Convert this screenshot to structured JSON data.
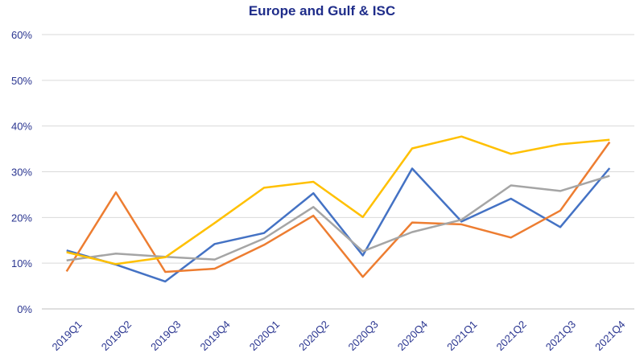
{
  "chart_data": {
    "type": "line",
    "title": "Europe and Gulf & ISC",
    "categories": [
      "2019Q1",
      "2019Q2",
      "2019Q3",
      "2019Q4",
      "2020Q1",
      "2020Q2",
      "2020Q3",
      "2020Q4",
      "2021Q1",
      "2021Q2",
      "2021Q3",
      "2021Q4"
    ],
    "y_ticks": [
      "0%",
      "10%",
      "20%",
      "30%",
      "40%",
      "50%",
      "60%"
    ],
    "ylim": [
      0,
      60
    ],
    "grid": true,
    "legend": "none",
    "series": [
      {
        "color": "#4472c4",
        "values": [
          12.8,
          9.7,
          6.0,
          14.2,
          16.6,
          25.3,
          11.7,
          30.7,
          19.1,
          24.1,
          17.9,
          30.8
        ]
      },
      {
        "color": "#ed7d31",
        "values": [
          8.2,
          25.5,
          8.1,
          8.8,
          14.0,
          20.4,
          7.0,
          18.9,
          18.5,
          15.6,
          21.5,
          36.5
        ]
      },
      {
        "color": "#a5a5a5",
        "values": [
          10.6,
          12.1,
          11.4,
          10.8,
          15.4,
          22.3,
          12.6,
          16.8,
          19.5,
          27.0,
          25.8,
          29.1
        ]
      },
      {
        "color": "#ffc000",
        "values": [
          12.4,
          9.8,
          11.3,
          18.8,
          26.5,
          27.8,
          20.1,
          35.1,
          37.7,
          33.9,
          36.0,
          37.0
        ]
      }
    ]
  }
}
